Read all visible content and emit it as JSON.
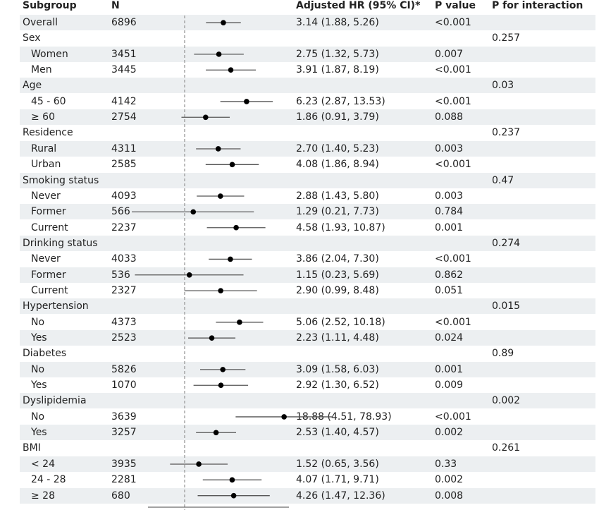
{
  "headers": {
    "subgroup": "Subgroup",
    "n": "N",
    "hr": "Adjusted HR (95% CI)*",
    "p": "P value",
    "pint": "P for interaction"
  },
  "rows": [
    {
      "label": "Overall",
      "level": 0,
      "n": "6896",
      "hr_text": "3.14 (1.88, 5.26)",
      "p": "<0.001",
      "pint": ""
    },
    {
      "label": "Sex",
      "level": 0,
      "n": "",
      "hr_text": "",
      "p": "",
      "pint": "0.257"
    },
    {
      "label": "Women",
      "level": 1,
      "n": "3451",
      "hr_text": "2.75 (1.32, 5.73)",
      "p": "0.007",
      "pint": ""
    },
    {
      "label": "Men",
      "level": 1,
      "n": "3445",
      "hr_text": "3.91 (1.87, 8.19)",
      "p": "<0.001",
      "pint": ""
    },
    {
      "label": "Age",
      "level": 0,
      "n": "",
      "hr_text": "",
      "p": "",
      "pint": "0.03"
    },
    {
      "label": "45 - 60",
      "level": 1,
      "n": "4142",
      "hr_text": "6.23 (2.87, 13.53)",
      "p": "<0.001",
      "pint": ""
    },
    {
      "label": "≥ 60",
      "level": 1,
      "n": "2754",
      "hr_text": "1.86 (0.91, 3.79)",
      "p": "0.088",
      "pint": ""
    },
    {
      "label": "Residence",
      "level": 0,
      "n": "",
      "hr_text": "",
      "p": "",
      "pint": "0.237"
    },
    {
      "label": "Rural",
      "level": 1,
      "n": "4311",
      "hr_text": "2.70 (1.40, 5.23)",
      "p": "0.003",
      "pint": ""
    },
    {
      "label": "Urban",
      "level": 1,
      "n": "2585",
      "hr_text": "4.08 (1.86, 8.94)",
      "p": "<0.001",
      "pint": ""
    },
    {
      "label": "Smoking status",
      "level": 0,
      "n": "",
      "hr_text": "",
      "p": "",
      "pint": "0.47"
    },
    {
      "label": "Never",
      "level": 1,
      "n": "4093",
      "hr_text": "2.88 (1.43, 5.80)",
      "p": "0.003",
      "pint": ""
    },
    {
      "label": "Former",
      "level": 1,
      "n": "566",
      "hr_text": "1.29 (0.21, 7.73)",
      "p": "0.784",
      "pint": ""
    },
    {
      "label": "Current",
      "level": 1,
      "n": "2237",
      "hr_text": "4.58 (1.93, 10.87)",
      "p": "0.001",
      "pint": ""
    },
    {
      "label": "Drinking status",
      "level": 0,
      "n": "",
      "hr_text": "",
      "p": "",
      "pint": "0.274"
    },
    {
      "label": "Never",
      "level": 1,
      "n": "4033",
      "hr_text": "3.86 (2.04, 7.30)",
      "p": "<0.001",
      "pint": ""
    },
    {
      "label": "Former",
      "level": 1,
      "n": "536",
      "hr_text": "1.15 (0.23, 5.69)",
      "p": "0.862",
      "pint": ""
    },
    {
      "label": "Current",
      "level": 1,
      "n": "2327",
      "hr_text": "2.90 (0.99, 8.48)",
      "p": "0.051",
      "pint": ""
    },
    {
      "label": "Hypertension",
      "level": 0,
      "n": "",
      "hr_text": "",
      "p": "",
      "pint": "0.015"
    },
    {
      "label": "No",
      "level": 1,
      "n": "4373",
      "hr_text": "5.06 (2.52, 10.18)",
      "p": "<0.001",
      "pint": ""
    },
    {
      "label": "Yes",
      "level": 1,
      "n": "2523",
      "hr_text": "2.23 (1.11, 4.48)",
      "p": "0.024",
      "pint": ""
    },
    {
      "label": "Diabetes",
      "level": 0,
      "n": "",
      "hr_text": "",
      "p": "",
      "pint": "0.89"
    },
    {
      "label": "No",
      "level": 1,
      "n": "5826",
      "hr_text": "3.09 (1.58, 6.03)",
      "p": "0.001",
      "pint": ""
    },
    {
      "label": "Yes",
      "level": 1,
      "n": "1070",
      "hr_text": "2.92 (1.30, 6.52)",
      "p": "0.009",
      "pint": ""
    },
    {
      "label": "Dyslipidemia",
      "level": 0,
      "n": "",
      "hr_text": "",
      "p": "",
      "pint": "0.002"
    },
    {
      "label": "No",
      "level": 1,
      "n": "3639",
      "hr_text": "18.88 (4.51, 78.93)",
      "p": "<0.001",
      "pint": ""
    },
    {
      "label": "Yes",
      "level": 1,
      "n": "3257",
      "hr_text": "2.53 (1.40, 4.57)",
      "p": "0.002",
      "pint": ""
    },
    {
      "label": "BMI",
      "level": 0,
      "n": "",
      "hr_text": "",
      "p": "",
      "pint": "0.261"
    },
    {
      "label": "< 24",
      "level": 1,
      "n": "3935",
      "hr_text": "1.52 (0.65, 3.56)",
      "p": "0.33",
      "pint": ""
    },
    {
      "label": "24 - 28",
      "level": 1,
      "n": "2281",
      "hr_text": "4.07 (1.71, 9.71)",
      "p": "0.002",
      "pint": ""
    },
    {
      "label": "≥ 28",
      "level": 1,
      "n": "680",
      "hr_text": "4.26 (1.47, 12.36)",
      "p": "0.008",
      "pint": ""
    }
  ],
  "chart_data": {
    "type": "forest",
    "x_scale": "log2",
    "reference_line": 1,
    "reference_style": "dashed",
    "colors": {
      "marker": "#000000",
      "ci_line": "#555555",
      "reference": "#999999",
      "shading": "#eceff1"
    },
    "series": [
      {
        "label": "Overall",
        "hr": 3.14,
        "lower": 1.88,
        "upper": 5.26
      },
      {
        "label": "Women",
        "hr": 2.75,
        "lower": 1.32,
        "upper": 5.73
      },
      {
        "label": "Men",
        "hr": 3.91,
        "lower": 1.87,
        "upper": 8.19
      },
      {
        "label": "45 - 60",
        "hr": 6.23,
        "lower": 2.87,
        "upper": 13.53
      },
      {
        "label": "≥ 60",
        "hr": 1.86,
        "lower": 0.91,
        "upper": 3.79
      },
      {
        "label": "Rural",
        "hr": 2.7,
        "lower": 1.4,
        "upper": 5.23
      },
      {
        "label": "Urban",
        "hr": 4.08,
        "lower": 1.86,
        "upper": 8.94
      },
      {
        "label": "Never",
        "hr": 2.88,
        "lower": 1.43,
        "upper": 5.8
      },
      {
        "label": "Former",
        "hr": 1.29,
        "lower": 0.21,
        "upper": 7.73
      },
      {
        "label": "Current",
        "hr": 4.58,
        "lower": 1.93,
        "upper": 10.87
      },
      {
        "label": "Never",
        "hr": 3.86,
        "lower": 2.04,
        "upper": 7.3
      },
      {
        "label": "Former",
        "hr": 1.15,
        "lower": 0.23,
        "upper": 5.69
      },
      {
        "label": "Current",
        "hr": 2.9,
        "lower": 0.99,
        "upper": 8.48
      },
      {
        "label": "No",
        "hr": 5.06,
        "lower": 2.52,
        "upper": 10.18
      },
      {
        "label": "Yes",
        "hr": 2.23,
        "lower": 1.11,
        "upper": 4.48
      },
      {
        "label": "No",
        "hr": 3.09,
        "lower": 1.58,
        "upper": 6.03
      },
      {
        "label": "Yes",
        "hr": 2.92,
        "lower": 1.3,
        "upper": 6.52
      },
      {
        "label": "No",
        "hr": 18.88,
        "lower": 4.51,
        "upper": 78.93
      },
      {
        "label": "Yes",
        "hr": 2.53,
        "lower": 1.4,
        "upper": 4.57
      },
      {
        "label": "< 24",
        "hr": 1.52,
        "lower": 0.65,
        "upper": 3.56
      },
      {
        "label": "24 - 28",
        "hr": 4.07,
        "lower": 1.71,
        "upper": 9.71
      },
      {
        "label": "≥ 28",
        "hr": 4.26,
        "lower": 1.47,
        "upper": 12.36
      }
    ]
  }
}
